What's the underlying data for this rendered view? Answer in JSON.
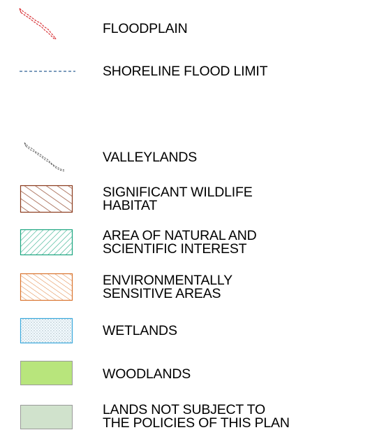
{
  "legend": {
    "items": [
      {
        "id": "floodplain",
        "label": "FLOODPLAIN",
        "symbol": "red-dashed-outline-line",
        "color": "#d6262b"
      },
      {
        "id": "shoreline-flood-limit",
        "label": "SHORELINE FLOOD LIMIT",
        "symbol": "blue-dashed-line",
        "color": "#2c5f95"
      },
      {
        "id": "valleylands",
        "label": "VALLEYLANDS",
        "symbol": "grey-dashed-outline-line",
        "color": "#555555"
      },
      {
        "id": "significant-wildlife-habitat",
        "label_line1": "SIGNIFICANT WILDLIFE",
        "label_line2": "HABITAT",
        "symbol": "hatched-box",
        "color": "#8a3a1c"
      },
      {
        "id": "anai",
        "label_line1": "AREA OF NATURAL AND",
        "label_line2": "SCIENTIFIC INTEREST",
        "symbol": "hatched-box",
        "color": "#1aa57f"
      },
      {
        "id": "esa",
        "label_line1": "ENVIRONMENTALLY",
        "label_line2": "SENSITIVE AREAS",
        "symbol": "hatched-box",
        "color": "#d9742e"
      },
      {
        "id": "wetlands",
        "label": "WETLANDS",
        "symbol": "stippled-box",
        "color": "#3aa9dc"
      },
      {
        "id": "woodlands",
        "label": "WOODLANDS",
        "symbol": "solid-box",
        "color": "#b8e57c"
      },
      {
        "id": "lands-not-subject",
        "label_line1": "LANDS NOT SUBJECT TO",
        "label_line2": "THE POLICIES OF THIS PLAN",
        "symbol": "solid-box",
        "color": "#d0e2cc"
      }
    ]
  }
}
